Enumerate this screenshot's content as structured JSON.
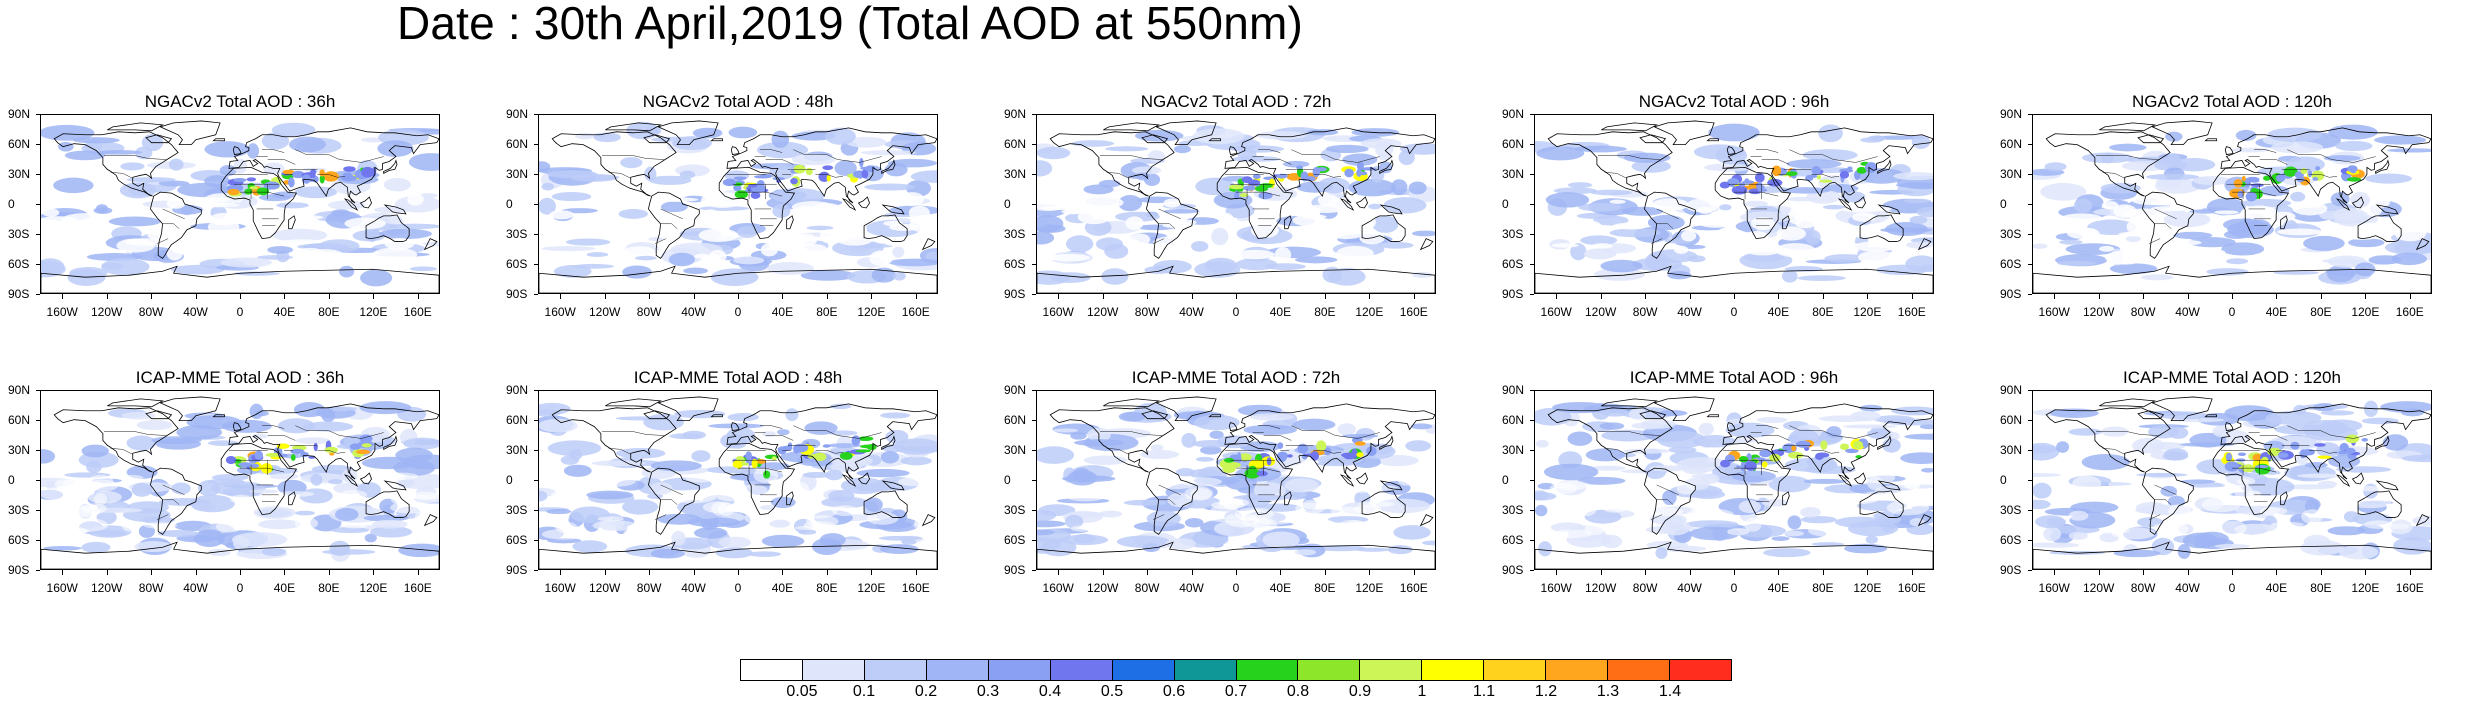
{
  "title": "Date : 30th April,2019 (Total AOD at 550nm)",
  "latitude_labels": [
    "90N",
    "60N",
    "30N",
    "0",
    "30S",
    "60S",
    "90S"
  ],
  "longitude_labels": [
    "160W",
    "120W",
    "80W",
    "40W",
    "0",
    "40E",
    "80E",
    "120E",
    "160E"
  ],
  "rows": [
    {
      "model": "NGACv2",
      "panels": [
        {
          "title": "NGACv2 Total AOD : 36h"
        },
        {
          "title": "NGACv2 Total AOD : 48h"
        },
        {
          "title": "NGACv2 Total AOD : 72h"
        },
        {
          "title": "NGACv2 Total AOD : 96h"
        },
        {
          "title": "NGACv2 Total AOD : 120h"
        }
      ]
    },
    {
      "model": "ICAP-MME",
      "panels": [
        {
          "title": "ICAP-MME Total AOD : 36h"
        },
        {
          "title": "ICAP-MME Total AOD : 48h"
        },
        {
          "title": "ICAP-MME Total AOD : 72h"
        },
        {
          "title": "ICAP-MME Total AOD : 96h"
        },
        {
          "title": "ICAP-MME Total AOD : 120h"
        }
      ]
    }
  ],
  "colorbar": {
    "labels": [
      "0.05",
      "0.1",
      "0.2",
      "0.3",
      "0.4",
      "0.5",
      "0.6",
      "0.7",
      "0.8",
      "0.9",
      "1",
      "1.1",
      "1.2",
      "1.3",
      "1.4"
    ],
    "colors": [
      "#ffffff",
      "#dfe6fb",
      "#bdcdf8",
      "#9fb5f5",
      "#8aa0f2",
      "#6f76ee",
      "#1e6ee6",
      "#0f9696",
      "#26d21c",
      "#8ee62a",
      "#cdf558",
      "#ffff00",
      "#ffd21e",
      "#ffa51e",
      "#ff6e14",
      "#ff2d1e"
    ]
  }
}
